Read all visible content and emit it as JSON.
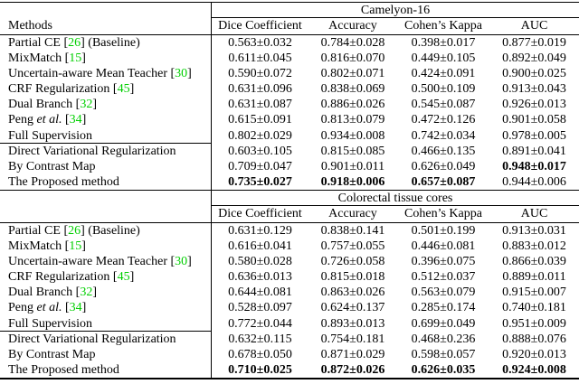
{
  "colors": {
    "citation_green": "#00cf00",
    "rule": "#000000",
    "text": "#000000",
    "background": "#ffffff"
  },
  "methods_header": "Methods",
  "tables": [
    {
      "title": "Camelyon-16",
      "columns": [
        "Dice Coefficient",
        "Accuracy",
        "Cohen’s Kappa",
        "AUC"
      ],
      "show_methods_header": true,
      "rows": [
        {
          "method": [
            {
              "text": "Partial CE ",
              "type": "text"
            },
            {
              "text": "26",
              "type": "cite"
            },
            {
              "text": " (Baseline)",
              "type": "text"
            }
          ],
          "values": [
            {
              "t": "0.563±0.032",
              "b": false
            },
            {
              "t": "0.784±0.028",
              "b": false
            },
            {
              "t": "0.398±0.017",
              "b": false
            },
            {
              "t": "0.877±0.019",
              "b": false
            }
          ],
          "group_end": false
        },
        {
          "method": [
            {
              "text": "MixMatch ",
              "type": "text"
            },
            {
              "text": "15",
              "type": "cite"
            }
          ],
          "values": [
            {
              "t": "0.611±0.045",
              "b": false
            },
            {
              "t": "0.816±0.070",
              "b": false
            },
            {
              "t": "0.449±0.105",
              "b": false
            },
            {
              "t": "0.892±0.049",
              "b": false
            }
          ],
          "group_end": false
        },
        {
          "method": [
            {
              "text": "Uncertain-aware Mean Teacher ",
              "type": "text"
            },
            {
              "text": "30",
              "type": "cite"
            }
          ],
          "values": [
            {
              "t": "0.590±0.072",
              "b": false
            },
            {
              "t": "0.802±0.071",
              "b": false
            },
            {
              "t": "0.424±0.091",
              "b": false
            },
            {
              "t": "0.900±0.025",
              "b": false
            }
          ],
          "group_end": false
        },
        {
          "method": [
            {
              "text": "CRF Regularization ",
              "type": "text"
            },
            {
              "text": "45",
              "type": "cite"
            }
          ],
          "values": [
            {
              "t": "0.631±0.096",
              "b": false
            },
            {
              "t": "0.838±0.069",
              "b": false
            },
            {
              "t": "0.500±0.109",
              "b": false
            },
            {
              "t": "0.913±0.043",
              "b": false
            }
          ],
          "group_end": false
        },
        {
          "method": [
            {
              "text": "Dual Branch ",
              "type": "text"
            },
            {
              "text": "32",
              "type": "cite"
            }
          ],
          "values": [
            {
              "t": "0.631±0.087",
              "b": false
            },
            {
              "t": "0.886±0.026",
              "b": false
            },
            {
              "t": "0.545±0.087",
              "b": false
            },
            {
              "t": "0.926±0.013",
              "b": false
            }
          ],
          "group_end": false
        },
        {
          "method": [
            {
              "text": "Peng ",
              "type": "text"
            },
            {
              "text": "et al.",
              "type": "italic"
            },
            {
              "text": " ",
              "type": "text"
            },
            {
              "text": "34",
              "type": "cite"
            }
          ],
          "values": [
            {
              "t": "0.615±0.091",
              "b": false
            },
            {
              "t": "0.813±0.079",
              "b": false
            },
            {
              "t": "0.472±0.126",
              "b": false
            },
            {
              "t": "0.901±0.058",
              "b": false
            }
          ],
          "group_end": false
        },
        {
          "method": [
            {
              "text": "Full Supervision",
              "type": "text"
            }
          ],
          "values": [
            {
              "t": "0.802±0.029",
              "b": false
            },
            {
              "t": "0.934±0.008",
              "b": false
            },
            {
              "t": "0.742±0.034",
              "b": false
            },
            {
              "t": "0.978±0.005",
              "b": false
            }
          ],
          "group_end": true
        },
        {
          "method": [
            {
              "text": "Direct Variational Regularization",
              "type": "text"
            }
          ],
          "values": [
            {
              "t": "0.603±0.105",
              "b": false
            },
            {
              "t": "0.815±0.085",
              "b": false
            },
            {
              "t": "0.466±0.135",
              "b": false
            },
            {
              "t": "0.891±0.041",
              "b": false
            }
          ],
          "group_end": false
        },
        {
          "method": [
            {
              "text": "By Contrast Map",
              "type": "text"
            }
          ],
          "values": [
            {
              "t": "0.709±0.047",
              "b": false
            },
            {
              "t": "0.901±0.011",
              "b": false
            },
            {
              "t": "0.626±0.049",
              "b": false
            },
            {
              "t": "0.948±0.017",
              "b": true
            }
          ],
          "group_end": false
        },
        {
          "method": [
            {
              "text": "The Proposed method",
              "type": "text"
            }
          ],
          "values": [
            {
              "t": "0.735±0.027",
              "b": true
            },
            {
              "t": "0.918±0.006",
              "b": true
            },
            {
              "t": "0.657±0.087",
              "b": true
            },
            {
              "t": "0.944±0.006",
              "b": false
            }
          ],
          "group_end": false
        }
      ]
    },
    {
      "title": "Colorectal tissue cores",
      "columns": [
        "Dice Coefficient",
        "Accuracy",
        "Cohen’s Kappa",
        "AUC"
      ],
      "show_methods_header": false,
      "rows": [
        {
          "method": [
            {
              "text": "Partial CE ",
              "type": "text"
            },
            {
              "text": "26",
              "type": "cite"
            },
            {
              "text": " (Baseline)",
              "type": "text"
            }
          ],
          "values": [
            {
              "t": "0.631±0.129",
              "b": false
            },
            {
              "t": "0.838±0.141",
              "b": false
            },
            {
              "t": "0.501±0.199",
              "b": false
            },
            {
              "t": "0.913±0.031",
              "b": false
            }
          ],
          "group_end": false
        },
        {
          "method": [
            {
              "text": "MixMatch ",
              "type": "text"
            },
            {
              "text": "15",
              "type": "cite"
            }
          ],
          "values": [
            {
              "t": "0.616±0.041",
              "b": false
            },
            {
              "t": "0.757±0.055",
              "b": false
            },
            {
              "t": "0.446±0.081",
              "b": false
            },
            {
              "t": "0.883±0.012",
              "b": false
            }
          ],
          "group_end": false
        },
        {
          "method": [
            {
              "text": "Uncertain-aware Mean Teacher ",
              "type": "text"
            },
            {
              "text": "30",
              "type": "cite"
            }
          ],
          "values": [
            {
              "t": "0.580±0.028",
              "b": false
            },
            {
              "t": "0.726±0.058",
              "b": false
            },
            {
              "t": "0.396±0.075",
              "b": false
            },
            {
              "t": "0.866±0.039",
              "b": false
            }
          ],
          "group_end": false
        },
        {
          "method": [
            {
              "text": "CRF Regularization ",
              "type": "text"
            },
            {
              "text": "45",
              "type": "cite"
            }
          ],
          "values": [
            {
              "t": "0.636±0.013",
              "b": false
            },
            {
              "t": "0.815±0.018",
              "b": false
            },
            {
              "t": "0.512±0.037",
              "b": false
            },
            {
              "t": "0.889±0.011",
              "b": false
            }
          ],
          "group_end": false
        },
        {
          "method": [
            {
              "text": "Dual Branch ",
              "type": "text"
            },
            {
              "text": "32",
              "type": "cite"
            }
          ],
          "values": [
            {
              "t": "0.644±0.081",
              "b": false
            },
            {
              "t": "0.863±0.026",
              "b": false
            },
            {
              "t": "0.563±0.079",
              "b": false
            },
            {
              "t": "0.915±0.007",
              "b": false
            }
          ],
          "group_end": false
        },
        {
          "method": [
            {
              "text": "Peng ",
              "type": "text"
            },
            {
              "text": "et al.",
              "type": "italic"
            },
            {
              "text": " ",
              "type": "text"
            },
            {
              "text": "34",
              "type": "cite"
            }
          ],
          "values": [
            {
              "t": "0.528±0.097",
              "b": false
            },
            {
              "t": "0.624±0.137",
              "b": false
            },
            {
              "t": "0.285±0.174",
              "b": false
            },
            {
              "t": "0.740±0.181",
              "b": false
            }
          ],
          "group_end": false
        },
        {
          "method": [
            {
              "text": "Full Supervision",
              "type": "text"
            }
          ],
          "values": [
            {
              "t": "0.772±0.044",
              "b": false
            },
            {
              "t": "0.893±0.013",
              "b": false
            },
            {
              "t": "0.699±0.049",
              "b": false
            },
            {
              "t": "0.951±0.009",
              "b": false
            }
          ],
          "group_end": true
        },
        {
          "method": [
            {
              "text": "Direct Variational Regularization",
              "type": "text"
            }
          ],
          "values": [
            {
              "t": "0.632±0.115",
              "b": false
            },
            {
              "t": "0.754±0.181",
              "b": false
            },
            {
              "t": "0.468±0.236",
              "b": false
            },
            {
              "t": "0.888±0.076",
              "b": false
            }
          ],
          "group_end": false
        },
        {
          "method": [
            {
              "text": "By Contrast Map",
              "type": "text"
            }
          ],
          "values": [
            {
              "t": "0.678±0.050",
              "b": false
            },
            {
              "t": "0.871±0.029",
              "b": false
            },
            {
              "t": "0.598±0.057",
              "b": false
            },
            {
              "t": "0.920±0.013",
              "b": false
            }
          ],
          "group_end": false
        },
        {
          "method": [
            {
              "text": "The Proposed method",
              "type": "text"
            }
          ],
          "values": [
            {
              "t": "0.710±0.025",
              "b": true
            },
            {
              "t": "0.872±0.026",
              "b": true
            },
            {
              "t": "0.626±0.035",
              "b": true
            },
            {
              "t": "0.924±0.008",
              "b": true
            }
          ],
          "group_end": false
        }
      ]
    }
  ]
}
